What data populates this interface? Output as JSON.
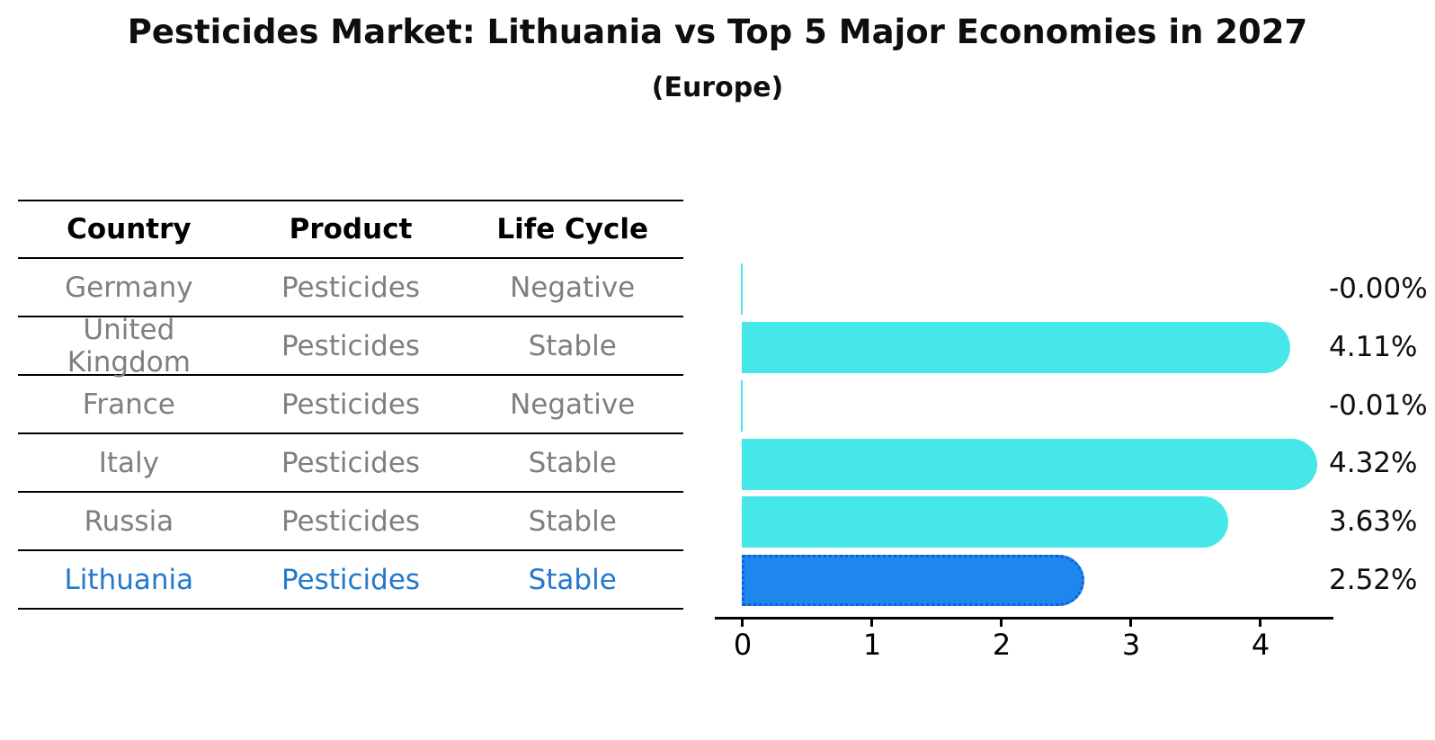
{
  "title": "Pesticides Market: Lithuania vs Top 5 Major Economies in 2027",
  "subtitle": "(Europe)",
  "table": {
    "headers": [
      "Country",
      "Product",
      "Life Cycle"
    ],
    "rows": [
      {
        "country": "Germany",
        "product": "Pesticides",
        "life_cycle": "Negative",
        "highlight": false
      },
      {
        "country": "United Kingdom",
        "product": "Pesticides",
        "life_cycle": "Stable",
        "highlight": false
      },
      {
        "country": "France",
        "product": "Pesticides",
        "life_cycle": "Negative",
        "highlight": false
      },
      {
        "country": "Italy",
        "product": "Pesticides",
        "life_cycle": "Stable",
        "highlight": false
      },
      {
        "country": "Russia",
        "product": "Pesticides",
        "life_cycle": "Stable",
        "highlight": false
      },
      {
        "country": "Lithuania",
        "product": "Pesticides",
        "life_cycle": "Stable",
        "highlight": true
      }
    ]
  },
  "chart_data": {
    "type": "bar",
    "orientation": "horizontal",
    "title": "Pesticides Market: Lithuania vs Top 5 Major Economies in 2027 (Europe)",
    "categories": [
      "Germany",
      "United Kingdom",
      "France",
      "Italy",
      "Russia",
      "Lithuania"
    ],
    "values": [
      -0.0,
      4.11,
      -0.01,
      4.32,
      3.63,
      2.52
    ],
    "value_labels": [
      "-0.00%",
      "4.11%",
      "-0.01%",
      "4.32%",
      "3.63%",
      "2.52%"
    ],
    "xticks": [
      "0",
      "1",
      "2",
      "3",
      "4"
    ],
    "xlim": [
      -0.2,
      4.55
    ],
    "xlabel": "",
    "ylabel": "",
    "grid": false,
    "legend": false,
    "highlight_index": 5
  },
  "colors": {
    "bar_default": "#46E7E8",
    "bar_highlight": "#1E87EE",
    "bar_highlight_border": "#0D5ED8",
    "highlight_text": "#2478CE",
    "row_text": "#7F7F7F",
    "axis": "#000000"
  }
}
